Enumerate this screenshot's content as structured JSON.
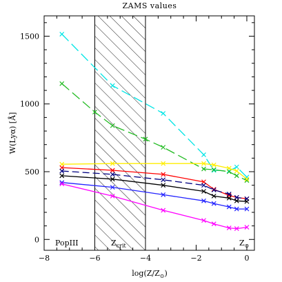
{
  "chart_data": {
    "type": "line",
    "title": "ZAMS values",
    "xlabel_main": "log(Z/Z",
    "xlabel_sub": "⊙",
    "xlabel_end": ")",
    "ylabel_main": "W(Lyα) [",
    "ylabel_unit": "Å",
    "ylabel_end": "]",
    "xlim": [
      -8,
      0.3
    ],
    "ylim": [
      -80,
      1650
    ],
    "xticks": [
      -8,
      -6,
      -4,
      -2,
      0
    ],
    "xtick_labels": [
      "−8",
      "−6",
      "−4",
      "−2",
      "0"
    ],
    "yticks": [
      0,
      500,
      1000,
      1500
    ],
    "ytick_labels": [
      "0",
      "500",
      "1000",
      "1500"
    ],
    "hatched_region": [
      -6,
      -4
    ],
    "annotations": {
      "popiii": "PopIII",
      "zcrit_main": "Z",
      "zcrit_sub": "crit",
      "zsun_main": "Z",
      "zsun_sub": "⊙"
    },
    "series": [
      {
        "color": "#00e5e5",
        "dash": "14,6",
        "x": [
          -7.3,
          -5.3,
          -3.3,
          -1.7,
          -1.3,
          -0.7,
          -0.4,
          0
        ],
        "y": [
          1515,
          1135,
          930,
          625,
          510,
          505,
          535,
          460
        ]
      },
      {
        "color": "#22bb22",
        "dash": "14,6",
        "x": [
          -7.3,
          -6,
          -5.3,
          -4,
          -3.3,
          -1.7,
          -1.3,
          -0.7,
          -0.4,
          0
        ],
        "y": [
          1150,
          940,
          840,
          740,
          680,
          520,
          515,
          500,
          470,
          435
        ]
      },
      {
        "color": "#ffee00",
        "dash": "",
        "x": [
          -7.3,
          -5.3,
          -3.3,
          -1.7,
          -1.3,
          -0.7,
          -0.4,
          0
        ],
        "y": [
          555,
          560,
          560,
          560,
          550,
          525,
          505,
          445
        ]
      },
      {
        "color": "#ff0000",
        "dash": "",
        "x": [
          -7.3,
          -5.3,
          -3.3,
          -1.7,
          -1.3,
          -0.7,
          -0.4,
          0
        ],
        "y": [
          530,
          510,
          480,
          425,
          370,
          325,
          310,
          300
        ]
      },
      {
        "color": "#000080",
        "dash": "10,5",
        "x": [
          -7.3,
          -5.3,
          -3.3,
          -1.7,
          -1.3,
          -0.7,
          -0.4,
          0
        ],
        "y": [
          505,
          480,
          440,
          400,
          365,
          335,
          310,
          300
        ]
      },
      {
        "color": "#000000",
        "dash": "",
        "x": [
          -7.3,
          -5.3,
          -3.3,
          -1.7,
          -1.3,
          -0.7,
          -0.4,
          0
        ],
        "y": [
          470,
          445,
          400,
          355,
          320,
          305,
          285,
          280
        ]
      },
      {
        "color": "#2222ff",
        "dash": "",
        "x": [
          -7.3,
          -5.3,
          -3.3,
          -1.7,
          -1.3,
          -0.7,
          -0.4,
          0
        ],
        "y": [
          420,
          385,
          330,
          285,
          265,
          240,
          225,
          225
        ]
      },
      {
        "color": "#ff00ff",
        "dash": "",
        "x": [
          -7.3,
          -5.3,
          -3.3,
          -1.7,
          -1.3,
          -0.7,
          -0.4,
          0
        ],
        "y": [
          410,
          320,
          215,
          140,
          115,
          85,
          80,
          90
        ]
      }
    ]
  }
}
